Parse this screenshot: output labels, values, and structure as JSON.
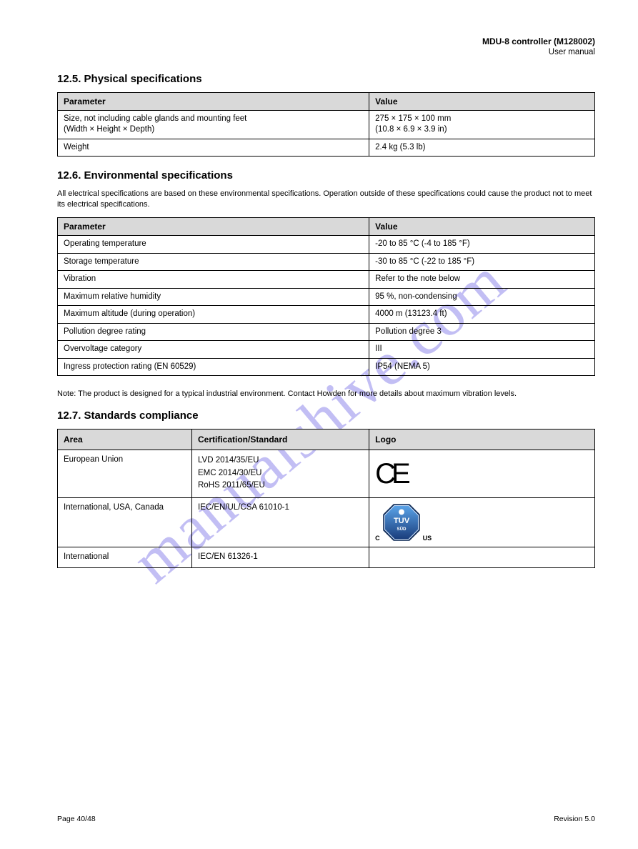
{
  "header": {
    "product": "MDU-8 controller (M128002)",
    "manual": "User manual"
  },
  "sections": {
    "physical": {
      "title": "12.5. Physical specifications",
      "cols": [
        "Parameter",
        "Value"
      ],
      "rows": [
        [
          "Size, not including cable glands and mounting feet\n(Width × Height × Depth)",
          "275 × 175 × 100 mm\n(10.8 × 6.9 × 3.9 in)"
        ],
        [
          "Weight",
          "2.4 kg (5.3 lb)"
        ]
      ]
    },
    "environmental": {
      "title": "12.6. Environmental specifications",
      "note1": "All electrical specifications are based on these environmental specifications. Operation outside of these specifications could cause the product not to meet its electrical specifications.",
      "cols": [
        "Parameter",
        "Value"
      ],
      "rows": [
        [
          "Operating temperature",
          "-20 to 85 °C (-4 to 185 °F)"
        ],
        [
          "Storage temperature",
          "-30 to 85 °C (-22 to 185 °F)"
        ],
        [
          "Vibration",
          "Refer to the note below"
        ],
        [
          "Maximum relative humidity",
          "95 %, non-condensing"
        ],
        [
          "Maximum altitude (during operation)",
          "4000 m (13123.4 ft)"
        ],
        [
          "Pollution degree rating",
          "Pollution degree 3"
        ],
        [
          "Overvoltage category",
          "III"
        ],
        [
          "Ingress protection rating (EN 60529)",
          "IP54 (NEMA 5)"
        ]
      ],
      "note2": "Note: The product is designed for a typical industrial environment. Contact Howden for more details about maximum vibration levels."
    },
    "standards": {
      "title": "12.7. Standards compliance",
      "cols": [
        "Area",
        "Certification/Standard",
        "Logo"
      ],
      "rows": [
        {
          "area": "European Union",
          "std": "LVD 2014/35/EU\nEMC 2014/30/EU\nRoHS 2011/65/EU",
          "logo": "ce"
        },
        {
          "area": "International, USA, Canada",
          "std": "IEC/EN/UL/CSA 61010-1",
          "logo": "tuv"
        },
        {
          "area": "International",
          "std": "IEC/EN 61326-1",
          "logo": ""
        }
      ]
    }
  },
  "footer": {
    "left": "Page 40/48",
    "right": "Revision 5.0"
  },
  "watermark": "manualshive.com",
  "colors": {
    "header_bg": "#d9d9d9",
    "border": "#000000",
    "text": "#000000",
    "watermark": "rgba(120,110,230,0.45)",
    "tuv_blue_dark": "#1a3d7c",
    "tuv_blue_light": "#3b7fd4"
  }
}
